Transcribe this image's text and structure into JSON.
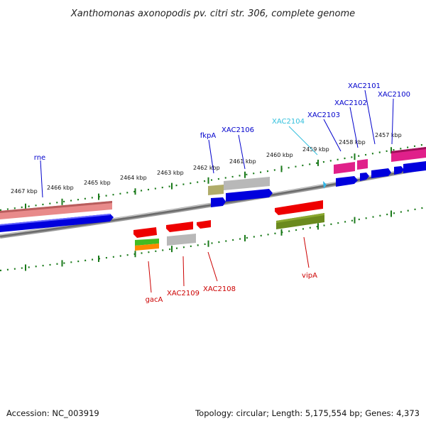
{
  "title": "Xanthomonas axonopodis pv. citri str. 306, complete genome",
  "footer": {
    "accession": "Accession: NC_003919",
    "summary": "Topology: circular; Length: 5,175,554 bp; Genes: 4,373"
  },
  "colors": {
    "forward_label": "#0000cc",
    "reverse_label": "#cc0000",
    "highlight_label": "#33c0dd",
    "tick": "#1a7a1a",
    "backbone": "#808080"
  },
  "ticks": [
    "2467 kbp",
    "2466 kbp",
    "2465 kbp",
    "2464 kbp",
    "2463 kbp",
    "2462 kbp",
    "2461 kbp",
    "2460 kbp",
    "2459 kbp",
    "2458 kbp",
    "2457 kbp"
  ],
  "genes_top": [
    "rne",
    "fkpA",
    "XAC2106",
    "XAC2104",
    "XAC2103",
    "XAC2102",
    "XAC2101",
    "XAC2100"
  ],
  "genes_bottom": [
    "gacA",
    "XAC2109",
    "XAC2108",
    "vipA"
  ]
}
